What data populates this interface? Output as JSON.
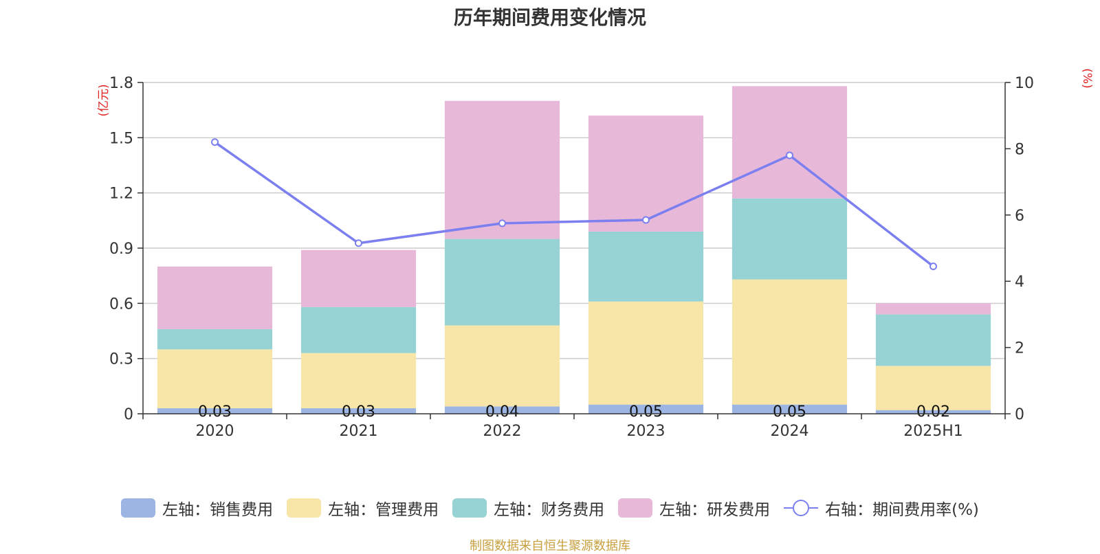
{
  "chart_data": {
    "type": "bar",
    "title": "历年期间费用变化情况",
    "source": "制图数据来自恒生聚源数据库",
    "ylabel_left": "(亿元)",
    "ylabel_right": "(%)",
    "categories": [
      "2020",
      "2021",
      "2022",
      "2023",
      "2024",
      "2025H1"
    ],
    "ylim_left": [
      0,
      1.8
    ],
    "yticks_left": [
      0,
      0.3,
      0.6,
      0.9,
      1.2,
      1.5,
      1.8
    ],
    "yticks_left_labels": [
      "0",
      "0.3",
      "0.6",
      "0.9",
      "1.2",
      "1.5",
      "1.8"
    ],
    "ylim_right": [
      0,
      10
    ],
    "yticks_right": [
      0,
      2,
      4,
      6,
      8,
      10
    ],
    "grid": true,
    "legend_position": "bottom",
    "series": [
      {
        "name": "左轴：销售费用",
        "type": "bar",
        "axis": "left",
        "color": "#9db5e2",
        "values": [
          0.03,
          0.03,
          0.04,
          0.05,
          0.05,
          0.02
        ],
        "data_labels": [
          "0.03",
          "0.03",
          "0.04",
          "0.05",
          "0.05",
          "0.02"
        ]
      },
      {
        "name": "左轴：管理费用",
        "type": "bar",
        "axis": "left",
        "color": "#f7e6a7",
        "values": [
          0.32,
          0.3,
          0.44,
          0.56,
          0.68,
          0.24
        ]
      },
      {
        "name": "左轴：财务费用",
        "type": "bar",
        "axis": "left",
        "color": "#97d3d4",
        "values": [
          0.11,
          0.25,
          0.47,
          0.38,
          0.44,
          0.28
        ]
      },
      {
        "name": "左轴：研发费用",
        "type": "bar",
        "axis": "left",
        "color": "#e7b8d8",
        "values": [
          0.34,
          0.31,
          0.75,
          0.63,
          0.61,
          0.06
        ]
      },
      {
        "name": "右轴：期间费用率(%)",
        "type": "line",
        "axis": "right",
        "color": "#7b7ff0",
        "values": [
          8.2,
          5.15,
          5.75,
          5.85,
          7.8,
          4.45
        ]
      }
    ]
  }
}
